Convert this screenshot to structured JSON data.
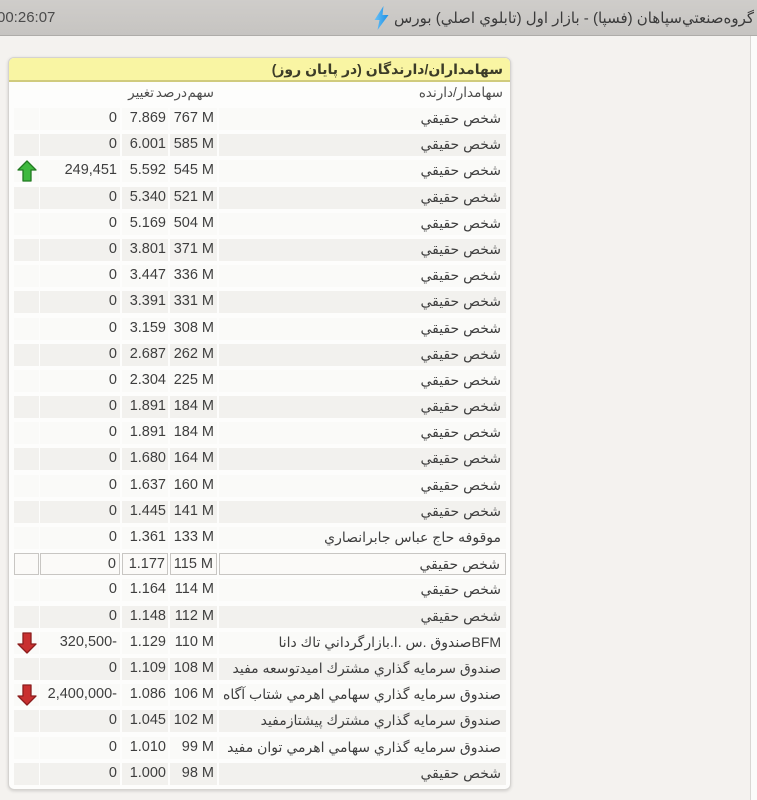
{
  "topbar": {
    "time": "00:26:07",
    "title": "گروه‌صنعتي‌سپاهان (فسپا) - بازار اول (تابلوي اصلي) بورس",
    "bolt_icon": "lightning-bolt",
    "bolt_color": "#2fa3ee"
  },
  "panel": {
    "title": "سهامداران/دارندگان (در پايان روز)",
    "columns": {
      "holder": "سهامدار/دارنده",
      "share": "سهم",
      "percent": "درصد",
      "change": "تغيير"
    },
    "rows": [
      {
        "holder": "شخص حقيقي",
        "share": "767 M",
        "percent": "7.869",
        "change": "0",
        "trend": "none",
        "selected": false
      },
      {
        "holder": "شخص حقيقي",
        "share": "585 M",
        "percent": "6.001",
        "change": "0",
        "trend": "none",
        "selected": false
      },
      {
        "holder": "شخص حقيقي",
        "share": "545 M",
        "percent": "5.592",
        "change": "249,451",
        "trend": "up",
        "selected": false
      },
      {
        "holder": "شخص حقيقي",
        "share": "521 M",
        "percent": "5.340",
        "change": "0",
        "trend": "none",
        "selected": false
      },
      {
        "holder": "شخص حقيقي",
        "share": "504 M",
        "percent": "5.169",
        "change": "0",
        "trend": "none",
        "selected": false
      },
      {
        "holder": "شخص حقيقي",
        "share": "371 M",
        "percent": "3.801",
        "change": "0",
        "trend": "none",
        "selected": false
      },
      {
        "holder": "شخص حقيقي",
        "share": "336 M",
        "percent": "3.447",
        "change": "0",
        "trend": "none",
        "selected": false
      },
      {
        "holder": "شخص حقيقي",
        "share": "331 M",
        "percent": "3.391",
        "change": "0",
        "trend": "none",
        "selected": false
      },
      {
        "holder": "شخص حقيقي",
        "share": "308 M",
        "percent": "3.159",
        "change": "0",
        "trend": "none",
        "selected": false
      },
      {
        "holder": "شخص حقيقي",
        "share": "262 M",
        "percent": "2.687",
        "change": "0",
        "trend": "none",
        "selected": false
      },
      {
        "holder": "شخص حقيقي",
        "share": "225 M",
        "percent": "2.304",
        "change": "0",
        "trend": "none",
        "selected": false
      },
      {
        "holder": "شخص حقيقي",
        "share": "184 M",
        "percent": "1.891",
        "change": "0",
        "trend": "none",
        "selected": false
      },
      {
        "holder": "شخص حقيقي",
        "share": "184 M",
        "percent": "1.891",
        "change": "0",
        "trend": "none",
        "selected": false
      },
      {
        "holder": "شخص حقيقي",
        "share": "164 M",
        "percent": "1.680",
        "change": "0",
        "trend": "none",
        "selected": false
      },
      {
        "holder": "شخص حقيقي",
        "share": "160 M",
        "percent": "1.637",
        "change": "0",
        "trend": "none",
        "selected": false
      },
      {
        "holder": "شخص حقيقي",
        "share": "141 M",
        "percent": "1.445",
        "change": "0",
        "trend": "none",
        "selected": false
      },
      {
        "holder": "موقوفه حاج عباس جابرانصاري",
        "share": "133 M",
        "percent": "1.361",
        "change": "0",
        "trend": "none",
        "selected": false
      },
      {
        "holder": "شخص حقيقي",
        "share": "115 M",
        "percent": "1.177",
        "change": "0",
        "trend": "none",
        "selected": true
      },
      {
        "holder": "شخص حقيقي",
        "share": "114 M",
        "percent": "1.164",
        "change": "0",
        "trend": "none",
        "selected": false
      },
      {
        "holder": "شخص حقيقي",
        "share": "112 M",
        "percent": "1.148",
        "change": "0",
        "trend": "none",
        "selected": false
      },
      {
        "holder": "BFMصندوق .س .ا.بازارگرداني تاك دانا",
        "share": "110 M",
        "percent": "1.129",
        "change": "-320,500",
        "trend": "down",
        "selected": false
      },
      {
        "holder": "صندوق سرمايه گذاري مشترك اميدتوسعه مفيد",
        "share": "108 M",
        "percent": "1.109",
        "change": "0",
        "trend": "none",
        "selected": false
      },
      {
        "holder": "صندوق سرمايه گذاري سهامي اهرمي شتاب آگاه",
        "share": "106 M",
        "percent": "1.086",
        "change": "-2,400,000",
        "trend": "down",
        "selected": false
      },
      {
        "holder": "صندوق سرمايه گذاري مشترك پيشتازمفيد",
        "share": "102 M",
        "percent": "1.045",
        "change": "0",
        "trend": "none",
        "selected": false
      },
      {
        "holder": "صندوق سرمايه گذاري سهامي اهرمي توان مفيد",
        "share": "99 M",
        "percent": "1.010",
        "change": "0",
        "trend": "none",
        "selected": false
      },
      {
        "holder": "شخص حقيقي",
        "share": "98 M",
        "percent": "1.000",
        "change": "0",
        "trend": "none",
        "selected": false
      }
    ]
  },
  "colors": {
    "panel_header_yellow": "#f9f5a3",
    "up_green": "#3eb93e",
    "down_red": "#c93030",
    "bolt_blue": "#2fa3ee",
    "topbar_gray": "#cac8c5"
  }
}
